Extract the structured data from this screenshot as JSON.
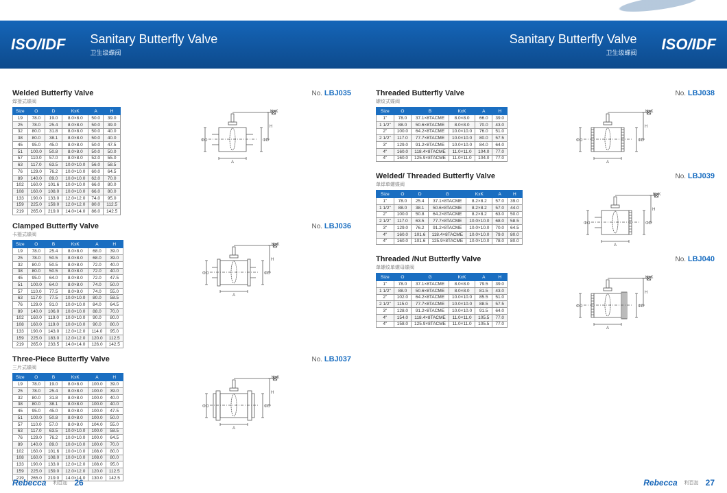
{
  "header": {
    "iso": "ISO/IDF",
    "title": "Sanitary Butterfly Valve",
    "sub": "卫生级蝶阀"
  },
  "brand": {
    "name": "Rebecca",
    "cn": "利百加",
    "pageL": "26",
    "pageR": "27"
  },
  "colors": {
    "header": "#1565b8",
    "headerDark": "#0d4a8c",
    "accent": "#1a6ec1",
    "border": "#999"
  },
  "noLabel": "No.",
  "left": [
    {
      "title": "Welded Butterfly Valve",
      "sub": "焊接式蝶阀",
      "no": "LBJ035",
      "cols": [
        "Size",
        "O",
        "D",
        "KxK",
        "A",
        "H"
      ],
      "rows": [
        [
          "19",
          "78.0",
          "19.0",
          "8.0×8.0",
          "50.0",
          "39.0"
        ],
        [
          "25",
          "78.0",
          "25.4",
          "8.0×8.0",
          "50.0",
          "39.0"
        ],
        [
          "32",
          "80.0",
          "31.8",
          "8.0×8.0",
          "50.0",
          "40.0"
        ],
        [
          "38",
          "80.0",
          "38.1",
          "8.0×8.0",
          "50.0",
          "40.0"
        ],
        [
          "45",
          "95.0",
          "45.0",
          "8.0×8.0",
          "50.0",
          "47.5"
        ],
        [
          "51",
          "100.0",
          "50.8",
          "8.0×8.0",
          "50.0",
          "50.0"
        ],
        [
          "57",
          "110.0",
          "57.0",
          "8.0×8.0",
          "52.0",
          "55.0"
        ],
        [
          "63",
          "117.0",
          "63.5",
          "10.0×10.0",
          "56.0",
          "58.5"
        ],
        [
          "76",
          "129.0",
          "76.2",
          "10.0×10.0",
          "60.0",
          "64.5"
        ],
        [
          "89",
          "140.0",
          "89.0",
          "10.0×10.0",
          "62.0",
          "70.0"
        ],
        [
          "102",
          "160.0",
          "101.6",
          "10.0×10.0",
          "66.0",
          "80.0"
        ],
        [
          "108",
          "160.0",
          "108.0",
          "10.0×10.0",
          "66.0",
          "80.0"
        ],
        [
          "133",
          "190.0",
          "133.0",
          "12.0×12.0",
          "74.0",
          "95.0"
        ],
        [
          "159",
          "225.0",
          "159.0",
          "12.0×12.0",
          "80.0",
          "112.5"
        ],
        [
          "219",
          "265.0",
          "219.0",
          "14.0×14.0",
          "86.0",
          "142.5"
        ]
      ]
    },
    {
      "title": "Clamped Butterfly Valve",
      "sub": "卡箍式蝶阀",
      "no": "LBJ036",
      "cols": [
        "Size",
        "O",
        "B",
        "KxK",
        "A",
        "H"
      ],
      "rows": [
        [
          "19",
          "78.0",
          "25.4",
          "8.0×8.0",
          "68.0",
          "39.0"
        ],
        [
          "25",
          "78.0",
          "50.5",
          "8.0×8.0",
          "68.0",
          "39.0"
        ],
        [
          "32",
          "80.0",
          "50.5",
          "8.0×8.0",
          "72.0",
          "40.0"
        ],
        [
          "38",
          "80.0",
          "50.5",
          "8.0×8.0",
          "72.0",
          "40.0"
        ],
        [
          "45",
          "95.0",
          "64.0",
          "8.0×8.0",
          "72.0",
          "47.5"
        ],
        [
          "51",
          "100.0",
          "64.0",
          "8.0×8.0",
          "74.0",
          "50.0"
        ],
        [
          "57",
          "110.0",
          "77.5",
          "8.0×8.0",
          "74.0",
          "55.0"
        ],
        [
          "63",
          "117.0",
          "77.5",
          "10.0×10.0",
          "80.0",
          "58.5"
        ],
        [
          "76",
          "129.0",
          "91.0",
          "10.0×10.0",
          "84.0",
          "64.5"
        ],
        [
          "89",
          "140.0",
          "106.0",
          "10.0×10.0",
          "88.0",
          "70.0"
        ],
        [
          "102",
          "160.0",
          "119.0",
          "10.0×10.0",
          "90.0",
          "80.0"
        ],
        [
          "108",
          "160.0",
          "119.0",
          "10.0×10.0",
          "90.0",
          "80.0"
        ],
        [
          "133",
          "190.0",
          "143.0",
          "12.0×12.0",
          "114.0",
          "95.0"
        ],
        [
          "159",
          "225.0",
          "183.0",
          "12.0×12.0",
          "120.0",
          "112.5"
        ],
        [
          "219",
          "265.0",
          "233.5",
          "14.0×14.0",
          "126.0",
          "142.5"
        ]
      ]
    },
    {
      "title": "Three-Piece Butterfly Valve",
      "sub": "三片式蝶阀",
      "no": "LBJ037",
      "cols": [
        "Size",
        "O",
        "B",
        "KxK",
        "A",
        "H"
      ],
      "rows": [
        [
          "19",
          "78.0",
          "19.0",
          "8.0×8.0",
          "100.0",
          "39.0"
        ],
        [
          "25",
          "78.0",
          "25.4",
          "8.0×8.0",
          "100.0",
          "39.0"
        ],
        [
          "32",
          "80.0",
          "31.8",
          "8.0×8.0",
          "100.0",
          "40.0"
        ],
        [
          "38",
          "80.0",
          "38.1",
          "8.0×8.0",
          "100.0",
          "40.0"
        ],
        [
          "45",
          "95.0",
          "45.0",
          "8.0×8.0",
          "100.0",
          "47.5"
        ],
        [
          "51",
          "100.0",
          "50.8",
          "8.0×8.0",
          "100.0",
          "50.0"
        ],
        [
          "57",
          "110.0",
          "57.0",
          "8.0×8.0",
          "104.0",
          "55.0"
        ],
        [
          "63",
          "117.0",
          "63.5",
          "10.0×10.0",
          "100.0",
          "58.5"
        ],
        [
          "76",
          "129.0",
          "76.2",
          "10.0×10.0",
          "100.0",
          "64.5"
        ],
        [
          "89",
          "140.0",
          "89.0",
          "10.0×10.0",
          "100.0",
          "70.0"
        ],
        [
          "102",
          "160.0",
          "101.6",
          "10.0×10.0",
          "108.0",
          "80.0"
        ],
        [
          "108",
          "160.0",
          "108.0",
          "10.0×10.0",
          "108.0",
          "80.0"
        ],
        [
          "133",
          "190.0",
          "133.0",
          "12.0×12.0",
          "108.0",
          "95.0"
        ],
        [
          "159",
          "225.0",
          "159.0",
          "12.0×12.0",
          "120.0",
          "112.5"
        ],
        [
          "219",
          "265.0",
          "219.0",
          "14.0×14.0",
          "130.0",
          "142.5"
        ]
      ]
    }
  ],
  "right": [
    {
      "title": "Threaded Butterfly Valve",
      "sub": "螺纹式蝶阀",
      "no": "LBJ038",
      "cols": [
        "Size",
        "O",
        "B",
        "KxK",
        "A",
        "H"
      ],
      "rows": [
        [
          "1\"",
          "78.0",
          "37.1×8TACME",
          "8.0×8.0",
          "66.0",
          "39.0"
        ],
        [
          "1 1/2\"",
          "88.0",
          "50.6×8TACME",
          "8.0×8.0",
          "70.0",
          "43.0"
        ],
        [
          "2\"",
          "100.0",
          "64.2×8TACME",
          "10.0×10.0",
          "76.0",
          "51.0"
        ],
        [
          "2 1/2\"",
          "117.0",
          "77.7×8TACME",
          "10.0×10.0",
          "80.0",
          "57.5"
        ],
        [
          "3\"",
          "129.0",
          "91.2×8TACME",
          "10.0×10.0",
          "84.0",
          "64.0"
        ],
        [
          "4\"",
          "160.0",
          "118.4×8TACME",
          "11.0×11.0",
          "104.0",
          "77.0"
        ],
        [
          "4\"",
          "160.0",
          "125.9×8TACME",
          "11.0×11.0",
          "104.0",
          "77.0"
        ]
      ]
    },
    {
      "title": "Welded/ Threaded Butterfly Valve",
      "sub": "单焊单螺蝶阀",
      "no": "LBJ039",
      "cols": [
        "Size",
        "O",
        "D",
        "G",
        "KxK",
        "A",
        "H"
      ],
      "rows": [
        [
          "1\"",
          "78.0",
          "25.4",
          "37.1×8TACME",
          "8.2×8.2",
          "57.0",
          "39.0"
        ],
        [
          "1 1/2\"",
          "88.0",
          "38.1",
          "50.6×8TACME",
          "8.2×8.2",
          "57.0",
          "44.0"
        ],
        [
          "2\"",
          "100.0",
          "50.8",
          "64.2×8TACME",
          "8.2×8.2",
          "63.0",
          "50.0"
        ],
        [
          "2 1/2\"",
          "117.0",
          "63.5",
          "77.7×8TACME",
          "10.0×10.0",
          "68.0",
          "58.5"
        ],
        [
          "3\"",
          "129.0",
          "76.2",
          "91.2×8TACME",
          "10.0×10.0",
          "70.0",
          "64.5"
        ],
        [
          "4\"",
          "160.0",
          "101.6",
          "118.4×8TACME",
          "10.0×10.0",
          "79.0",
          "80.0"
        ],
        [
          "4\"",
          "160.0",
          "101.6",
          "125.9×8TACME",
          "10.0×10.0",
          "78.0",
          "80.0"
        ]
      ]
    },
    {
      "title": "Threaded /Nut Butterfly Valve",
      "sub": "单螺纹单螺母蝶阀",
      "no": "LBJ040",
      "cols": [
        "Size",
        "O",
        "G",
        "KxK",
        "A",
        "H"
      ],
      "rows": [
        [
          "1\"",
          "78.0",
          "37.1×8TACME",
          "8.0×8.0",
          "79.5",
          "39.0"
        ],
        [
          "1 1/2\"",
          "88.0",
          "50.6×8TACME",
          "8.0×8.0",
          "81.5",
          "43.0"
        ],
        [
          "2\"",
          "102.0",
          "64.2×8TACME",
          "10.0×10.0",
          "85.5",
          "51.0"
        ],
        [
          "2 1/2\"",
          "115.0",
          "77.7×8TACME",
          "10.0×10.0",
          "88.5",
          "57.5"
        ],
        [
          "3\"",
          "128.0",
          "91.2×8TACME",
          "10.0×10.0",
          "91.5",
          "64.0"
        ],
        [
          "4\"",
          "154.0",
          "118.4×8TACME",
          "11.0×11.0",
          "105.5",
          "77.0"
        ],
        [
          "4\"",
          "158.0",
          "125.9×8TACME",
          "11.0×11.0",
          "105.5",
          "77.0"
        ]
      ]
    }
  ]
}
